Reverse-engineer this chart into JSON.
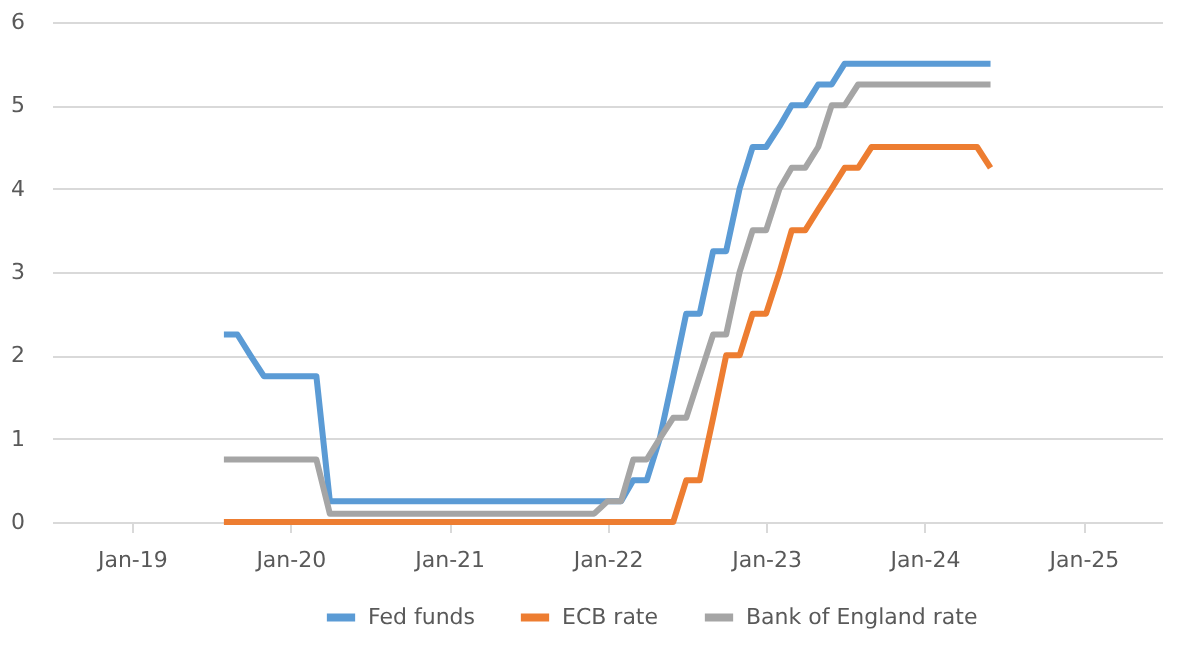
{
  "chart_data": {
    "type": "line",
    "x": [
      "2019-08",
      "2019-09",
      "2019-10",
      "2019-11",
      "2019-12",
      "2020-01",
      "2020-02",
      "2020-03",
      "2020-04",
      "2020-05",
      "2020-06",
      "2020-07",
      "2020-08",
      "2020-09",
      "2020-10",
      "2020-11",
      "2020-12",
      "2021-01",
      "2021-02",
      "2021-03",
      "2021-04",
      "2021-05",
      "2021-06",
      "2021-07",
      "2021-08",
      "2021-09",
      "2021-10",
      "2021-11",
      "2021-12",
      "2022-01",
      "2022-02",
      "2022-03",
      "2022-04",
      "2022-05",
      "2022-06",
      "2022-07",
      "2022-08",
      "2022-09",
      "2022-10",
      "2022-11",
      "2022-12",
      "2023-01",
      "2023-02",
      "2023-03",
      "2023-04",
      "2023-05",
      "2023-06",
      "2023-07",
      "2023-08",
      "2023-09",
      "2023-10",
      "2023-11",
      "2023-12",
      "2024-01",
      "2024-02",
      "2024-03",
      "2024-04",
      "2024-05",
      "2024-06"
    ],
    "series": [
      {
        "name": "Fed funds",
        "color": "#5b9bd5",
        "values": [
          2.25,
          2.25,
          2.0,
          1.75,
          1.75,
          1.75,
          1.75,
          1.75,
          0.25,
          0.25,
          0.25,
          0.25,
          0.25,
          0.25,
          0.25,
          0.25,
          0.25,
          0.25,
          0.25,
          0.25,
          0.25,
          0.25,
          0.25,
          0.25,
          0.25,
          0.25,
          0.25,
          0.25,
          0.25,
          0.25,
          0.25,
          0.5,
          0.5,
          1.0,
          1.75,
          2.5,
          2.5,
          3.25,
          3.25,
          4.0,
          4.5,
          4.5,
          4.75,
          5.0,
          5.0,
          5.25,
          5.25,
          5.5,
          5.5,
          5.5,
          5.5,
          5.5,
          5.5,
          5.5,
          5.5,
          5.5,
          5.5,
          5.5,
          5.5
        ]
      },
      {
        "name": "ECB rate",
        "color": "#ed7d31",
        "values": [
          0,
          0,
          0,
          0,
          0,
          0,
          0,
          0,
          0,
          0,
          0,
          0,
          0,
          0,
          0,
          0,
          0,
          0,
          0,
          0,
          0,
          0,
          0,
          0,
          0,
          0,
          0,
          0,
          0,
          0,
          0,
          0,
          0,
          0,
          0,
          0.5,
          0.5,
          1.25,
          2.0,
          2.0,
          2.5,
          2.5,
          3.0,
          3.5,
          3.5,
          3.75,
          4.0,
          4.25,
          4.25,
          4.5,
          4.5,
          4.5,
          4.5,
          4.5,
          4.5,
          4.5,
          4.5,
          4.5,
          4.25
        ]
      },
      {
        "name": "Bank of England rate",
        "color": "#a5a5a5",
        "values": [
          0.75,
          0.75,
          0.75,
          0.75,
          0.75,
          0.75,
          0.75,
          0.75,
          0.1,
          0.1,
          0.1,
          0.1,
          0.1,
          0.1,
          0.1,
          0.1,
          0.1,
          0.1,
          0.1,
          0.1,
          0.1,
          0.1,
          0.1,
          0.1,
          0.1,
          0.1,
          0.1,
          0.1,
          0.1,
          0.25,
          0.25,
          0.75,
          0.75,
          1.0,
          1.25,
          1.25,
          1.75,
          2.25,
          2.25,
          3.0,
          3.5,
          3.5,
          4.0,
          4.25,
          4.25,
          4.5,
          5.0,
          5.0,
          5.25,
          5.25,
          5.25,
          5.25,
          5.25,
          5.25,
          5.25,
          5.25,
          5.25,
          5.25,
          5.25
        ]
      }
    ],
    "xlim": [
      "2018-07",
      "2025-07"
    ],
    "xticks": [
      {
        "value": "2019-01",
        "label": "Jan-19"
      },
      {
        "value": "2020-01",
        "label": "Jan-20"
      },
      {
        "value": "2021-01",
        "label": "Jan-21"
      },
      {
        "value": "2022-01",
        "label": "Jan-22"
      },
      {
        "value": "2023-01",
        "label": "Jan-23"
      },
      {
        "value": "2024-01",
        "label": "Jan-24"
      },
      {
        "value": "2025-01",
        "label": "Jan-25"
      }
    ],
    "ylim": [
      0,
      6
    ],
    "yticks": [
      0,
      1,
      2,
      3,
      4,
      5,
      6
    ],
    "grid": "y",
    "legend": "bottom",
    "line_style": "solid",
    "marker": "none"
  }
}
